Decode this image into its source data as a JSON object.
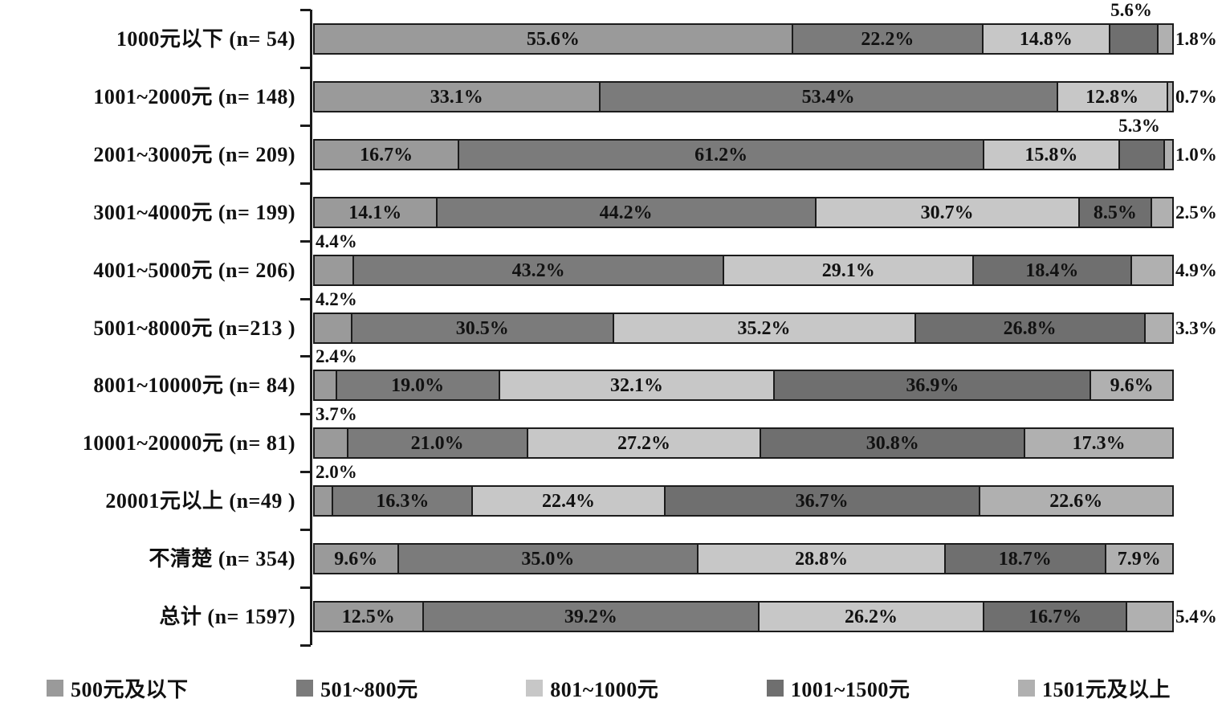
{
  "chart_data": {
    "type": "bar",
    "variant": "stacked-horizontal-100pct",
    "title": "",
    "xlabel": "",
    "ylabel": "",
    "xlim": [
      0,
      100
    ],
    "grid": false,
    "legend_position": "bottom",
    "value_format": "one-decimal-percent",
    "categories": [
      "1000元以下 (n= 54)",
      "1001~2000元 (n= 148)",
      "2001~3000元 (n= 209)",
      "3001~4000元 (n= 199)",
      "4001~5000元 (n= 206)",
      "5001~8000元 (n=213 )",
      "8001~10000元 (n= 84)",
      "10001~20000元 (n= 81)",
      "20001元以上 (n=49 )",
      "不清楚 (n= 354)",
      "总计 (n= 1597)"
    ],
    "series": [
      {
        "name": "500元及以下",
        "color": "#9a9a9a",
        "values": [
          55.6,
          33.1,
          16.7,
          14.1,
          4.4,
          4.2,
          2.4,
          3.7,
          2.0,
          9.6,
          12.5
        ]
      },
      {
        "name": "501~800元",
        "color": "#7b7b7b",
        "values": [
          22.2,
          53.4,
          61.2,
          44.2,
          43.2,
          30.5,
          19.0,
          21.0,
          16.3,
          35.0,
          39.2
        ]
      },
      {
        "name": "801~1000元",
        "color": "#c7c7c7",
        "values": [
          14.8,
          12.8,
          15.8,
          30.7,
          29.1,
          35.2,
          32.1,
          27.2,
          22.4,
          28.8,
          26.2
        ]
      },
      {
        "name": "1001~1500元",
        "color": "#6f6f6f",
        "values": [
          5.6,
          0.0,
          5.3,
          8.5,
          18.4,
          26.8,
          36.9,
          30.8,
          36.7,
          18.7,
          16.7
        ]
      },
      {
        "name": "1501元及以上",
        "color": "#b0b0b0",
        "values": [
          1.8,
          0.7,
          1.0,
          2.5,
          4.9,
          3.3,
          9.6,
          17.3,
          22.6,
          7.9,
          5.4
        ]
      }
    ],
    "label_positions": [
      [
        "in",
        "in",
        "in",
        "above",
        "right"
      ],
      [
        "in",
        "in",
        "in",
        "none",
        "right"
      ],
      [
        "in",
        "in",
        "in",
        "above",
        "right"
      ],
      [
        "in",
        "in",
        "in",
        "in",
        "right"
      ],
      [
        "above-left",
        "in",
        "in",
        "in",
        "right"
      ],
      [
        "above-left",
        "in",
        "in",
        "in",
        "right"
      ],
      [
        "above-left",
        "in",
        "in",
        "in",
        "in"
      ],
      [
        "above-left",
        "in",
        "in",
        "in",
        "in"
      ],
      [
        "above-left",
        "in",
        "in",
        "in",
        "in"
      ],
      [
        "in",
        "in",
        "in",
        "in",
        "in"
      ],
      [
        "in",
        "in",
        "in",
        "in",
        "right"
      ]
    ]
  }
}
